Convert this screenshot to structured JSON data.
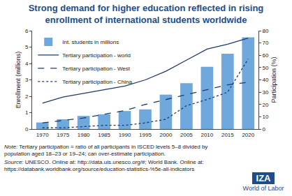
{
  "chart_data": {
    "type": "bar",
    "title": "Strong demand for higher education reflected in rising\nenrollment of international students worldwide",
    "categories": [
      "1970",
      "1975",
      "1980",
      "1985",
      "1990",
      "1995",
      "2000",
      "2005",
      "2010",
      "2015",
      "2020"
    ],
    "series": [
      {
        "name": "Int. students in millions",
        "type": "bar",
        "color": "#6fa8dc",
        "values": [
          0.4,
          0.6,
          0.8,
          0.9,
          1.1,
          1.2,
          2.1,
          2.8,
          3.8,
          4.6,
          5.6
        ]
      },
      {
        "name": "Tertiary participation - world",
        "type": "line",
        "axis": "y2",
        "color": "#1f3a68",
        "line_style": "solid",
        "values": [
          21,
          26,
          29,
          32,
          35,
          40,
          47,
          56,
          65,
          69,
          74
        ]
      },
      {
        "name": "Tertiary participation - West",
        "type": "line",
        "axis": "y2",
        "color": "#1f3a68",
        "line_style": "dash",
        "values": [
          5,
          7,
          9,
          12,
          15,
          20,
          24,
          28,
          32,
          36,
          38
        ]
      },
      {
        "name": "Tertiary participation - China",
        "type": "line",
        "axis": "y2",
        "color": "#1f3a68",
        "line_style": "dot",
        "values": [
          1,
          1,
          2,
          3,
          3,
          5,
          8,
          19,
          24,
          30,
          57
        ]
      }
    ],
    "ylabel": "Enrollment (millions)",
    "y2label": "Participation (%)",
    "ylim": [
      0,
      6
    ],
    "yticks": [
      0,
      1,
      2,
      3,
      4,
      5,
      6
    ],
    "y2lim": [
      0,
      80
    ],
    "y2ticks": [
      0,
      10,
      20,
      30,
      40,
      50,
      60,
      70,
      80
    ],
    "grid": false,
    "legend": "upper left"
  },
  "note": {
    "label": "Note:",
    "text": "Tertiary participation = ratio of all participants in ISCED levels 5–8 divided by population aged 18–23 or 19–24; can over-estimate participation."
  },
  "source": {
    "label": "Source:",
    "text": "UNESCO. Online at: http://data.uis.unesco.org/#; World Bank. Online at: https://databank.worldbank.org/source/education-statistics-%5e-all-indicators"
  },
  "logo": {
    "line1": "IZA",
    "line2": "World of Labor"
  }
}
